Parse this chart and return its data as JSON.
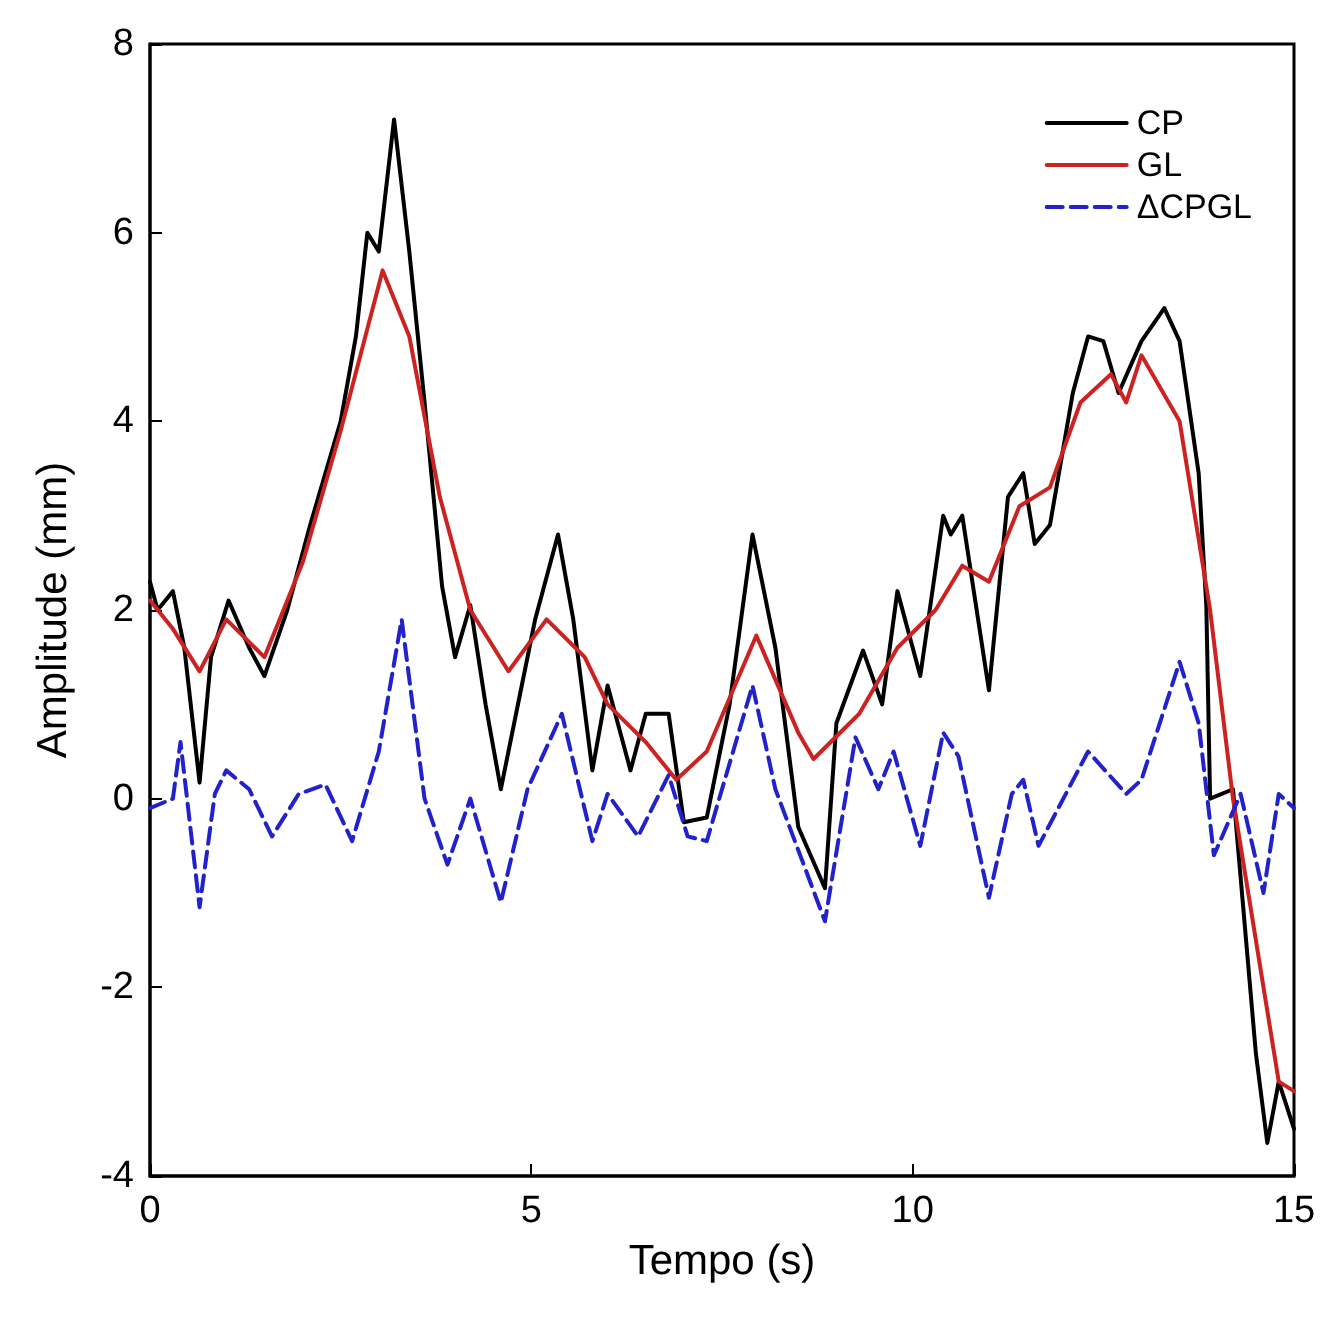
{
  "chart_data": {
    "type": "line",
    "xlabel": "Tempo (s)",
    "ylabel": "Amplitude (mm)",
    "xlim": [
      0,
      15
    ],
    "ylim": [
      -4,
      8
    ],
    "xticks": [
      0,
      5,
      10,
      15
    ],
    "yticks": [
      -4,
      -2,
      0,
      2,
      4,
      6,
      8
    ],
    "grid": false,
    "legend": "top right",
    "marker": "none",
    "series": [
      {
        "name": "CP",
        "color": "#000000",
        "line_style": "solid",
        "x": [
          0,
          0.1,
          0.3,
          0.45,
          0.65,
          0.8,
          1.03,
          1.3,
          1.5,
          1.8,
          2.1,
          2.5,
          2.7,
          2.85,
          3.0,
          3.2,
          3.4,
          3.6,
          3.83,
          4.0,
          4.2,
          4.4,
          4.6,
          4.8,
          5.05,
          5.35,
          5.55,
          5.8,
          6.0,
          6.3,
          6.5,
          6.8,
          7.0,
          7.3,
          7.6,
          7.9,
          8.2,
          8.5,
          8.85,
          9.0,
          9.35,
          9.6,
          9.8,
          10.1,
          10.4,
          10.5,
          10.65,
          11.0,
          11.25,
          11.45,
          11.6,
          11.8,
          12.1,
          12.3,
          12.5,
          12.7,
          13.0,
          13.3,
          13.5,
          13.75,
          13.85,
          13.9,
          14.2,
          14.5,
          14.65,
          14.8,
          15
        ],
        "values": [
          2.3,
          2.0,
          2.2,
          1.6,
          0.17,
          1.5,
          2.1,
          1.6,
          1.3,
          2.0,
          2.9,
          4.0,
          4.9,
          6.0,
          5.8,
          7.2,
          5.8,
          4.2,
          2.25,
          1.5,
          2.05,
          1.0,
          0.1,
          0.9,
          1.9,
          2.8,
          1.9,
          0.3,
          1.2,
          0.3,
          0.9,
          0.9,
          -0.25,
          -0.2,
          1.0,
          2.8,
          1.6,
          -0.3,
          -0.95,
          0.8,
          1.57,
          1.0,
          2.2,
          1.3,
          3.0,
          2.8,
          3.0,
          1.15,
          3.2,
          3.45,
          2.7,
          2.9,
          4.3,
          4.9,
          4.85,
          4.3,
          4.85,
          5.2,
          4.85,
          3.45,
          2.05,
          0,
          0.1,
          -2.7,
          -3.65,
          -3.0,
          -3.5
        ]
      },
      {
        "name": "GL",
        "color": "#cc2222",
        "line_style": "solid",
        "x": [
          0,
          0.3,
          0.65,
          1.0,
          1.5,
          2.0,
          2.5,
          3.05,
          3.4,
          3.8,
          4.2,
          4.7,
          5.2,
          5.7,
          6.0,
          6.5,
          6.9,
          7.3,
          7.95,
          8.5,
          8.7,
          9.3,
          9.8,
          10.3,
          10.65,
          11.0,
          11.4,
          11.8,
          12.2,
          12.6,
          12.8,
          13.0,
          13.5,
          13.9,
          14.2,
          14.5,
          14.8,
          15
        ],
        "values": [
          2.1,
          1.8,
          1.35,
          1.9,
          1.5,
          2.5,
          3.9,
          5.6,
          4.9,
          3.2,
          2.0,
          1.35,
          1.9,
          1.5,
          1.0,
          0.6,
          0.2,
          0.5,
          1.73,
          0.7,
          0.42,
          0.9,
          1.6,
          2.0,
          2.47,
          2.3,
          3.1,
          3.3,
          4.2,
          4.5,
          4.2,
          4.7,
          4.0,
          2.0,
          0.0,
          -1.5,
          -3.0,
          -3.1
        ]
      },
      {
        "name": "ΔCPGL",
        "color": "#2222cc",
        "line_style": "dashed",
        "x": [
          0,
          0.3,
          0.4,
          0.65,
          0.85,
          1.0,
          1.3,
          1.6,
          1.95,
          2.3,
          2.65,
          3.0,
          3.3,
          3.6,
          3.9,
          4.2,
          4.6,
          4.95,
          5.4,
          5.8,
          6.0,
          6.4,
          6.8,
          7.05,
          7.3,
          7.9,
          8.2,
          8.85,
          9.25,
          9.55,
          9.75,
          10.1,
          10.4,
          10.6,
          11.0,
          11.3,
          11.45,
          11.65,
          12.3,
          12.8,
          13.0,
          13.5,
          13.75,
          13.95,
          14.3,
          14.6,
          14.8,
          15
        ],
        "values": [
          -0.1,
          0,
          0.6,
          -1.15,
          0.05,
          0.3,
          0.1,
          -0.4,
          0.05,
          0.15,
          -0.45,
          0.5,
          1.9,
          0,
          -0.7,
          0.0,
          -1.1,
          0.1,
          0.9,
          -0.45,
          0.05,
          -0.4,
          0.25,
          -0.4,
          -0.45,
          1.2,
          0.1,
          -1.3,
          0.65,
          0.1,
          0.5,
          -0.5,
          0.7,
          0.45,
          -1.05,
          0.05,
          0.2,
          -0.5,
          0.5,
          0.05,
          0.2,
          1.45,
          0.8,
          -0.6,
          0.05,
          -1.0,
          0.05,
          -0.1
        ]
      }
    ]
  }
}
